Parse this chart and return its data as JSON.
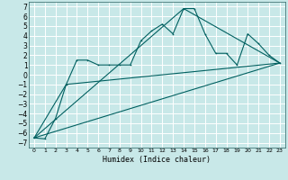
{
  "xlabel": "Humidex (Indice chaleur)",
  "bg_color": "#c8e8e8",
  "grid_color": "#ffffff",
  "line_color": "#006060",
  "xlim": [
    -0.5,
    23.5
  ],
  "ylim": [
    -7.5,
    7.5
  ],
  "xticks": [
    0,
    1,
    2,
    3,
    4,
    5,
    6,
    7,
    8,
    9,
    10,
    11,
    12,
    13,
    14,
    15,
    16,
    17,
    18,
    19,
    20,
    21,
    22,
    23
  ],
  "yticks": [
    -7,
    -6,
    -5,
    -4,
    -3,
    -2,
    -1,
    0,
    1,
    2,
    3,
    4,
    5,
    6,
    7
  ],
  "series1_x": [
    0,
    1,
    2,
    3,
    4,
    5,
    6,
    7,
    8,
    9,
    10,
    11,
    12,
    13,
    14,
    15,
    16,
    17,
    18,
    19,
    20,
    21,
    22,
    23
  ],
  "series1_y": [
    -6.5,
    -6.6,
    -4.5,
    -1.0,
    1.5,
    1.5,
    1.0,
    1.0,
    1.0,
    1.0,
    3.5,
    4.5,
    5.2,
    4.2,
    6.8,
    6.8,
    4.2,
    2.2,
    2.2,
    1.0,
    4.2,
    3.2,
    2.0,
    1.2
  ],
  "series2_x": [
    0,
    23
  ],
  "series2_y": [
    -6.5,
    1.2
  ],
  "series3_x": [
    0,
    3,
    23
  ],
  "series3_y": [
    -6.5,
    -1.0,
    1.2
  ],
  "series4_x": [
    0,
    14,
    23
  ],
  "series4_y": [
    -6.5,
    6.8,
    1.2
  ],
  "xlabel_fontsize": 6.0,
  "tick_fontsize_x": 4.5,
  "tick_fontsize_y": 5.5
}
